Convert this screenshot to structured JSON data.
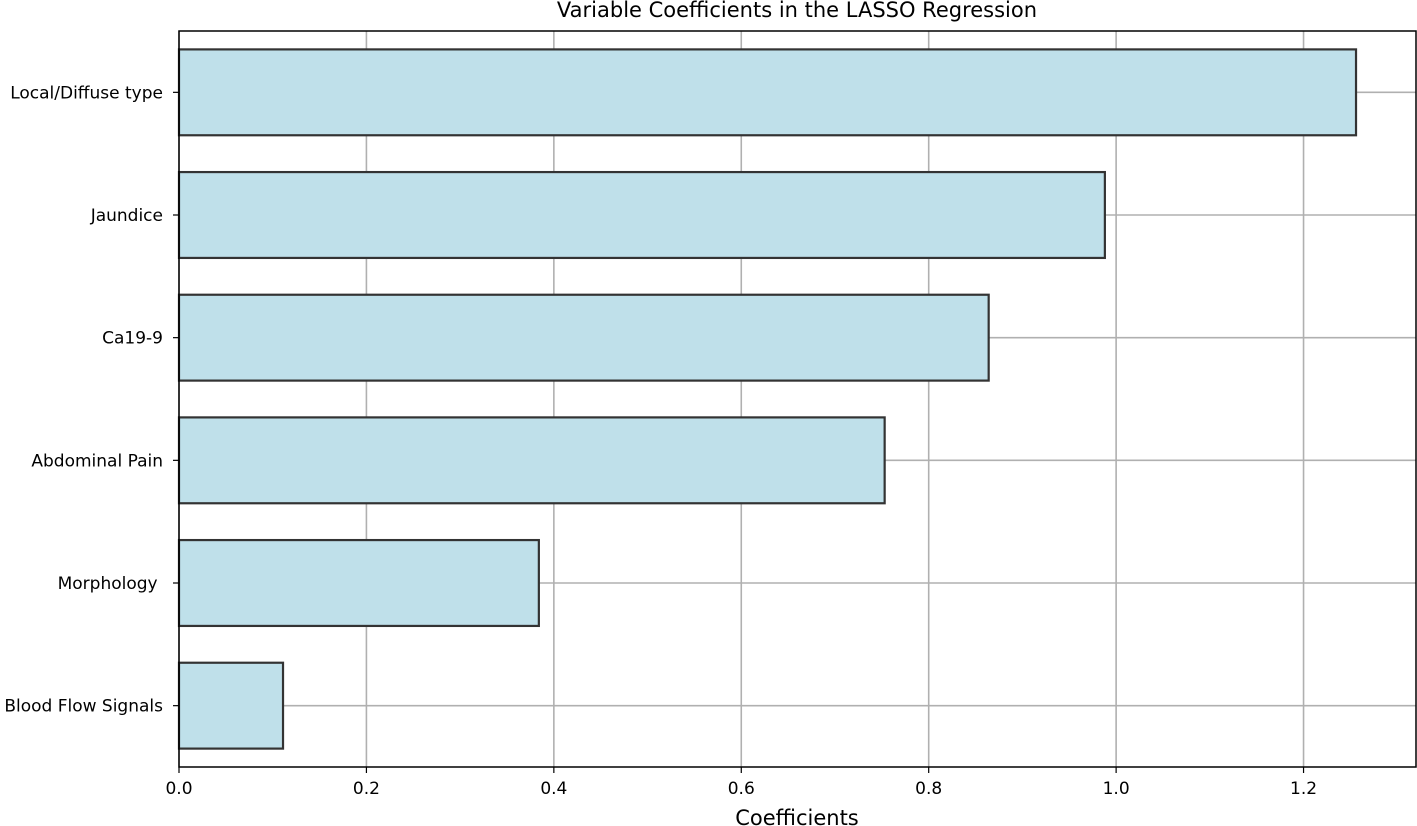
{
  "chart_data": {
    "type": "bar",
    "orientation": "horizontal",
    "title": "Variable Coefficients in the LASSO Regression",
    "xlabel": "Coefficients",
    "ylabel": "",
    "categories": [
      "Local/Diffuse type",
      "Jaundice",
      "Ca19-9",
      "Abdominal Pain",
      "Morphology ",
      "Blood Flow Signals"
    ],
    "values": [
      1.256,
      0.988,
      0.864,
      0.753,
      0.384,
      0.111
    ],
    "xlim": [
      0,
      1.32
    ],
    "xticks": [
      "0.0",
      "0.2",
      "0.4",
      "0.6",
      "0.8",
      "1.0",
      "1.2"
    ],
    "grid": true,
    "bar_color": "#bfe0ea",
    "bar_edge_color": "#333333",
    "grid_color": "#b0b0b0"
  }
}
